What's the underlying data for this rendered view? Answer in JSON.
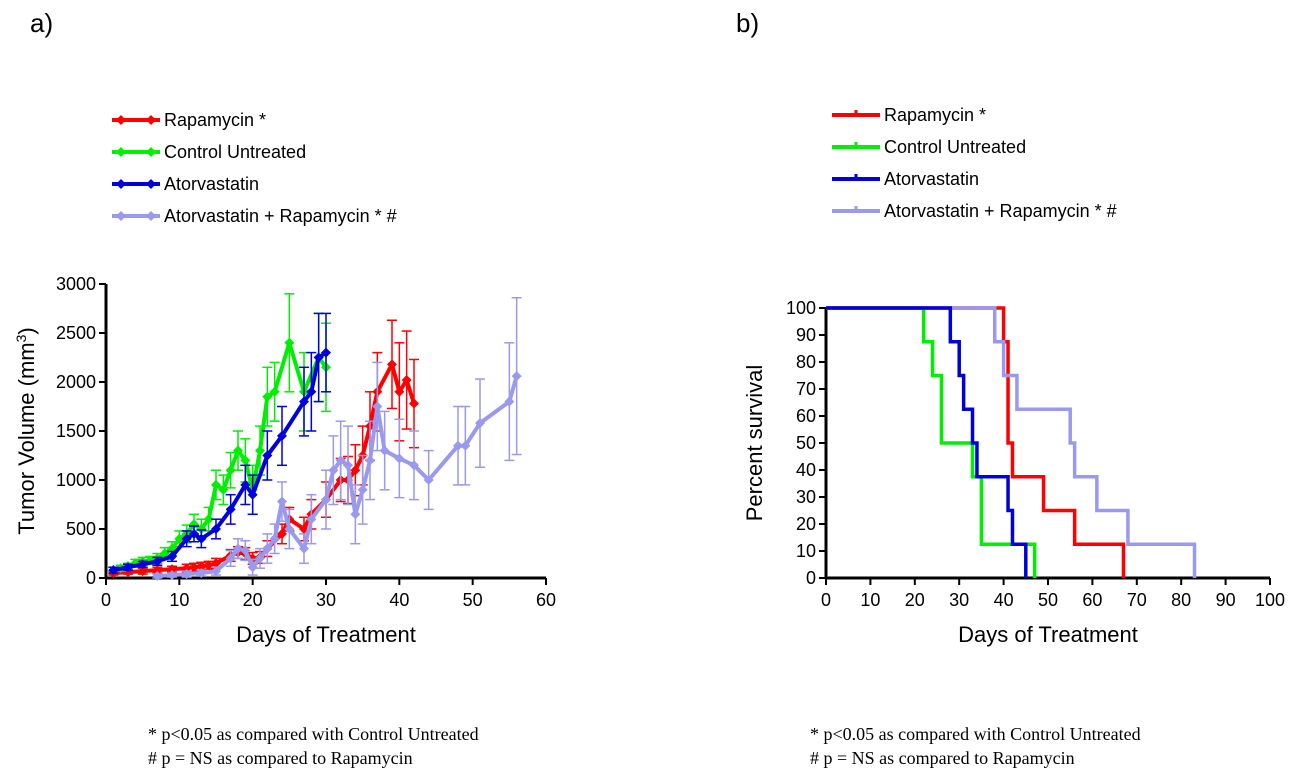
{
  "panels": {
    "a_label": "a)",
    "b_label": "b)"
  },
  "colors": {
    "rapamycin": "#ff0000",
    "control": "#00ee00",
    "atorvastatin": "#0000dd",
    "combo": "#9999ee"
  },
  "legend": [
    {
      "label": "Rapamycin *",
      "color": "#ff0000"
    },
    {
      "label": "Control Untreated",
      "color": "#00ee00"
    },
    {
      "label": "Atorvastatin",
      "color": "#0000dd"
    },
    {
      "label": "Atorvastatin + Rapamycin * #",
      "color": "#9999ee"
    }
  ],
  "footnotes": {
    "line1": "* p<0.05 as compared with Control Untreated",
    "line2": "# p = NS as compared to Rapamycin"
  },
  "chart_data": [
    {
      "type": "line",
      "xlabel": "Days of Treatment",
      "ylabel": "Tumor Volume (mm3)",
      "xlim": [
        0,
        60
      ],
      "ylim": [
        0,
        3000
      ],
      "xticks": [
        "0",
        "10",
        "20",
        "30",
        "40",
        "50",
        "60"
      ],
      "yticks": [
        "0",
        "500",
        "1000",
        "1500",
        "2000",
        "2500",
        "3000"
      ],
      "markers": "diamond",
      "error_bars": true,
      "series": [
        {
          "name": "Rapamycin *",
          "color": "#ff0000",
          "x": [
            1,
            3,
            5,
            7,
            9,
            11,
            12,
            13,
            14,
            15,
            17,
            18,
            19,
            20,
            21,
            22,
            24,
            25,
            27,
            28,
            30,
            32,
            33,
            34,
            35,
            36,
            37,
            39,
            40,
            41,
            42
          ],
          "y": [
            50,
            60,
            70,
            80,
            90,
            100,
            110,
            120,
            130,
            150,
            230,
            260,
            250,
            200,
            210,
            300,
            450,
            600,
            500,
            650,
            800,
            1000,
            1000,
            1100,
            1250,
            1550,
            1900,
            2180,
            1900,
            2020,
            1780
          ],
          "err": [
            20,
            20,
            30,
            30,
            30,
            40,
            40,
            40,
            40,
            50,
            60,
            60,
            60,
            60,
            60,
            80,
            100,
            120,
            120,
            150,
            180,
            220,
            240,
            260,
            300,
            350,
            400,
            450,
            500,
            500,
            450
          ]
        },
        {
          "name": "Control Untreated",
          "color": "#00ee00",
          "x": [
            1,
            2,
            3,
            4,
            5,
            6,
            7,
            8,
            9,
            10,
            11,
            12,
            13,
            14,
            15,
            16,
            17,
            18,
            19,
            20,
            21,
            22,
            23,
            25,
            27,
            29,
            30
          ],
          "y": [
            80,
            100,
            120,
            150,
            170,
            180,
            200,
            250,
            300,
            400,
            450,
            550,
            500,
            600,
            950,
            900,
            1100,
            1300,
            1200,
            900,
            1300,
            1850,
            1900,
            2400,
            1900,
            2250,
            2150
          ],
          "err": [
            30,
            30,
            30,
            40,
            40,
            40,
            50,
            60,
            70,
            80,
            90,
            100,
            100,
            120,
            150,
            150,
            180,
            200,
            220,
            250,
            250,
            300,
            300,
            500,
            400,
            450,
            450
          ]
        },
        {
          "name": "Atorvastatin",
          "color": "#0000dd",
          "x": [
            1,
            3,
            5,
            7,
            9,
            11,
            12,
            13,
            15,
            17,
            19,
            20,
            22,
            24,
            27,
            28,
            29,
            30
          ],
          "y": [
            80,
            110,
            140,
            170,
            220,
            400,
            450,
            400,
            500,
            700,
            950,
            850,
            1250,
            1450,
            1800,
            1900,
            2250,
            2300
          ],
          "err": [
            30,
            30,
            30,
            40,
            50,
            80,
            80,
            90,
            100,
            150,
            200,
            200,
            250,
            300,
            350,
            400,
            450,
            400
          ]
        },
        {
          "name": "Atorvastatin + Rapamycin * #",
          "color": "#9999ee",
          "x": [
            7,
            9,
            11,
            13,
            15,
            17,
            18,
            19,
            20,
            21,
            22,
            23,
            24,
            25,
            27,
            28,
            30,
            31,
            32,
            33,
            34,
            35,
            36,
            37,
            38,
            40,
            42,
            44,
            48,
            49,
            51,
            55,
            56
          ],
          "y": [
            20,
            30,
            40,
            50,
            70,
            200,
            300,
            280,
            110,
            200,
            300,
            400,
            780,
            500,
            300,
            600,
            800,
            1100,
            1200,
            1150,
            650,
            900,
            1200,
            1750,
            1300,
            1220,
            1150,
            1000,
            1350,
            1350,
            1580,
            1800,
            2060
          ],
          "err": [
            20,
            20,
            30,
            30,
            40,
            80,
            100,
            100,
            80,
            100,
            150,
            150,
            200,
            200,
            150,
            250,
            300,
            350,
            400,
            400,
            300,
            350,
            400,
            450,
            400,
            400,
            350,
            300,
            400,
            400,
            450,
            600,
            800
          ]
        }
      ]
    },
    {
      "type": "line",
      "subtype": "step-survival",
      "xlabel": "Days of Treatment",
      "ylabel": "Percent survival",
      "xlim": [
        0,
        100
      ],
      "ylim": [
        0,
        100
      ],
      "xticks": [
        "0",
        "10",
        "20",
        "30",
        "40",
        "50",
        "60",
        "70",
        "80",
        "90",
        "100"
      ],
      "yticks": [
        "0",
        "10",
        "20",
        "30",
        "40",
        "50",
        "60",
        "70",
        "80",
        "90",
        "100"
      ],
      "series": [
        {
          "name": "Rapamycin *",
          "color": "#ff0000",
          "x": [
            0,
            40,
            41,
            42,
            49,
            56,
            67
          ],
          "y": [
            100,
            87.5,
            50,
            37.5,
            25,
            12.5,
            0
          ]
        },
        {
          "name": "Control Untreated",
          "color": "#00ee00",
          "x": [
            0,
            22,
            24,
            26,
            33,
            35,
            47
          ],
          "y": [
            100,
            87.5,
            75,
            50,
            37.5,
            12.5,
            0
          ]
        },
        {
          "name": "Atorvastatin",
          "color": "#0000dd",
          "x": [
            0,
            28,
            30,
            31,
            33,
            34,
            41,
            42,
            45
          ],
          "y": [
            100,
            87.5,
            75,
            62.5,
            50,
            37.5,
            25,
            12.5,
            0
          ]
        },
        {
          "name": "Atorvastatin + Rapamycin * #",
          "color": "#9999ee",
          "x": [
            0,
            38,
            40,
            42,
            43,
            55,
            56,
            61,
            68,
            83
          ],
          "y": [
            100,
            87.5,
            75,
            75,
            62.5,
            50,
            37.5,
            25,
            12.5,
            0
          ]
        }
      ]
    }
  ]
}
